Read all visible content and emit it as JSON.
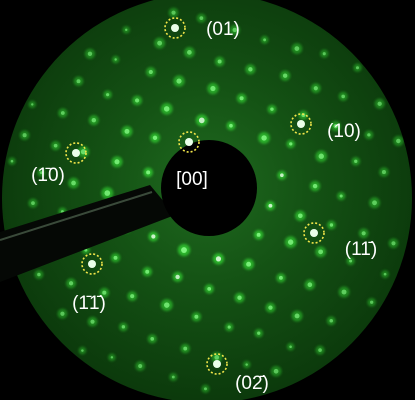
{
  "labels": [
    "[00]",
    "(01)",
    "(10)",
    "(1̄0)",
    "(11̄)",
    "(1̄1̄)",
    "(02̄)"
  ]
}
